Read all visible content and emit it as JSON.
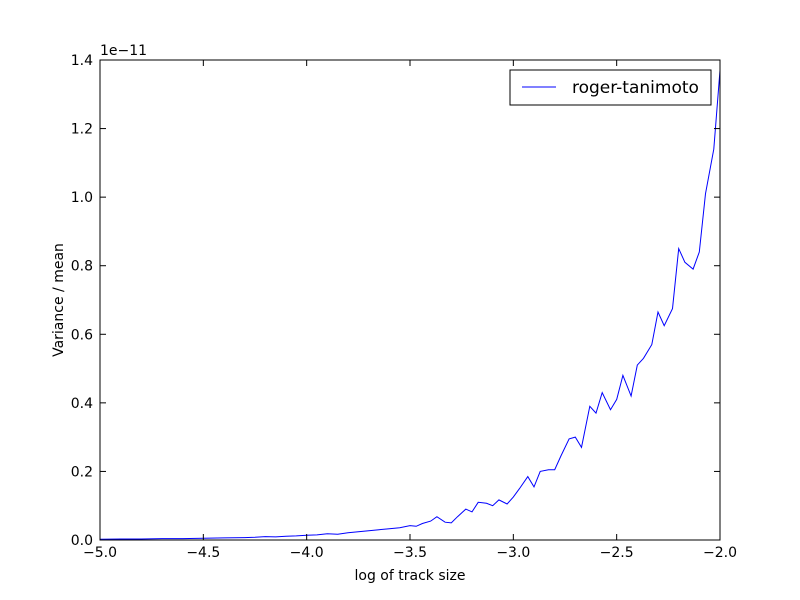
{
  "chart_data": {
    "type": "line",
    "xlabel": "log of track size",
    "ylabel": "Variance / mean",
    "offset_label": "1e−11",
    "xlim": [
      -5.0,
      -2.0
    ],
    "ylim": [
      0.0,
      1.4
    ],
    "xticks": [
      -5.0,
      -4.5,
      -4.0,
      -3.5,
      -3.0,
      -2.5,
      -2.0
    ],
    "xtick_labels": [
      "−5.0",
      "−4.5",
      "−4.0",
      "−3.5",
      "−3.0",
      "−2.5",
      "−2.0"
    ],
    "yticks": [
      0.0,
      0.2,
      0.4,
      0.6,
      0.8,
      1.0,
      1.2,
      1.4
    ],
    "ytick_labels": [
      "0.0",
      "0.2",
      "0.4",
      "0.6",
      "0.8",
      "1.0",
      "1.2",
      "1.4"
    ],
    "grid": false,
    "legend": {
      "placement": "top-right",
      "entries": [
        "roger-tanimoto"
      ]
    },
    "series": [
      {
        "name": "roger-tanimoto",
        "color": "#0000ff",
        "x": [
          -5.0,
          -4.9,
          -4.8,
          -4.7,
          -4.6,
          -4.5,
          -4.4,
          -4.3,
          -4.25,
          -4.2,
          -4.15,
          -4.1,
          -4.05,
          -4.0,
          -3.95,
          -3.9,
          -3.85,
          -3.8,
          -3.75,
          -3.7,
          -3.65,
          -3.6,
          -3.55,
          -3.5,
          -3.47,
          -3.44,
          -3.4,
          -3.37,
          -3.33,
          -3.3,
          -3.27,
          -3.23,
          -3.2,
          -3.17,
          -3.13,
          -3.1,
          -3.07,
          -3.03,
          -3.0,
          -2.97,
          -2.93,
          -2.9,
          -2.87,
          -2.83,
          -2.8,
          -2.77,
          -2.73,
          -2.7,
          -2.67,
          -2.63,
          -2.6,
          -2.57,
          -2.53,
          -2.5,
          -2.47,
          -2.43,
          -2.4,
          -2.37,
          -2.33,
          -2.3,
          -2.27,
          -2.23,
          -2.2,
          -2.17,
          -2.13,
          -2.1,
          -2.07,
          -2.03,
          -2.0
        ],
        "y": [
          0.002,
          0.003,
          0.003,
          0.004,
          0.004,
          0.005,
          0.006,
          0.007,
          0.008,
          0.01,
          0.009,
          0.011,
          0.012,
          0.014,
          0.015,
          0.018,
          0.017,
          0.021,
          0.024,
          0.027,
          0.03,
          0.033,
          0.036,
          0.042,
          0.04,
          0.048,
          0.055,
          0.068,
          0.052,
          0.05,
          0.068,
          0.09,
          0.082,
          0.11,
          0.107,
          0.1,
          0.117,
          0.105,
          0.125,
          0.15,
          0.185,
          0.155,
          0.2,
          0.205,
          0.205,
          0.245,
          0.295,
          0.3,
          0.27,
          0.39,
          0.37,
          0.43,
          0.38,
          0.41,
          0.48,
          0.42,
          0.51,
          0.53,
          0.57,
          0.665,
          0.625,
          0.675,
          0.85,
          0.81,
          0.79,
          0.84,
          1.01,
          1.14,
          1.37
        ]
      }
    ]
  }
}
